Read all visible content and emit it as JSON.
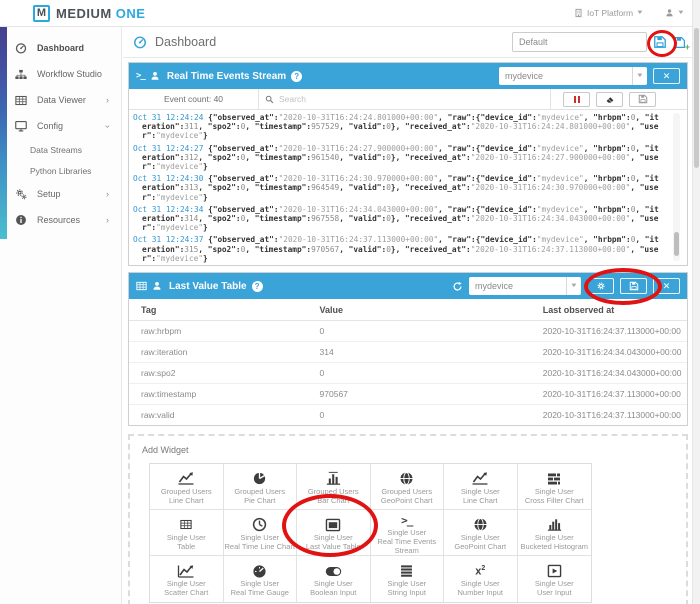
{
  "app": {
    "logo_mark": "M",
    "logo_medium": "MEDIUM",
    "logo_one": "ONE",
    "platform_label": "IoT Platform"
  },
  "sidebar": {
    "items": [
      {
        "label": "Dashboard",
        "icon": "gauge-icon",
        "active": true
      },
      {
        "label": "Workflow Studio",
        "icon": "sitemap-icon"
      },
      {
        "label": "Data Viewer",
        "icon": "table-icon",
        "chevron": "right"
      },
      {
        "label": "Config",
        "icon": "desktop-icon",
        "chevron": "down"
      },
      {
        "label": "Data Streams",
        "sub": true
      },
      {
        "label": "Python Libraries",
        "sub": true
      },
      {
        "label": "Setup",
        "icon": "gears-icon",
        "chevron": "right"
      },
      {
        "label": "Resources",
        "icon": "info-icon",
        "chevron": "right"
      }
    ]
  },
  "page_header": {
    "title": "Dashboard",
    "dashboard_name_value": "Default"
  },
  "events_widget": {
    "title": "Real Time Events Stream",
    "device_filter": "mydevice",
    "event_count_label": "Event count: 40",
    "search_placeholder": "Search",
    "events": [
      {
        "time": "Oct 31 12:24:24",
        "observed_at": "2020-10-31T16:24:24.801000+00:00",
        "device_id": "mydevice",
        "hrbpm": 0,
        "iteration": 311,
        "spo2": 0,
        "timestamp": 957529,
        "valid": 0,
        "received_at": "2020-10-31T16:24:24.801000+00:00",
        "user": "mydevice"
      },
      {
        "time": "Oct 31 12:24:27",
        "observed_at": "2020-10-31T16:24:27.900000+00:00",
        "device_id": "mydevice",
        "hrbpm": 0,
        "iteration": 312,
        "spo2": 0,
        "timestamp": 961540,
        "valid": 0,
        "received_at": "2020-10-31T16:24:27.900000+00:00",
        "user": "mydevice"
      },
      {
        "time": "Oct 31 12:24:30",
        "observed_at": "2020-10-31T16:24:30.970000+00:00",
        "device_id": "mydevice",
        "hrbpm": 0,
        "iteration": 313,
        "spo2": 0,
        "timestamp": 964549,
        "valid": 0,
        "received_at": "2020-10-31T16:24:30.970000+00:00",
        "user": "mydevice"
      },
      {
        "time": "Oct 31 12:24:34",
        "observed_at": "2020-10-31T16:24:34.043000+00:00",
        "device_id": "mydevice",
        "hrbpm": 0,
        "iteration": 314,
        "spo2": 0,
        "timestamp": 967558,
        "valid": 0,
        "received_at": "2020-10-31T16:24:34.043000+00:00",
        "user": "mydevice"
      },
      {
        "time": "Oct 31 12:24:37",
        "observed_at": "2020-10-31T16:24:37.113000+00:00",
        "device_id": "mydevice",
        "hrbpm": 0,
        "iteration": 315,
        "spo2": 0,
        "timestamp": 970567,
        "valid": 0,
        "received_at": "2020-10-31T16:24:37.113000+00:00",
        "user": "mydevice"
      }
    ]
  },
  "table_widget": {
    "title": "Last Value Table",
    "device_filter": "mydevice",
    "columns": [
      "Tag",
      "Value",
      "Last observed at"
    ],
    "rows": [
      {
        "tag": "raw:hrbpm",
        "value": "0",
        "last_observed": "2020-10-31T16:24:37.113000+00:00"
      },
      {
        "tag": "raw:iteration",
        "value": "314",
        "last_observed": "2020-10-31T16:24:34.043000+00:00"
      },
      {
        "tag": "raw:spo2",
        "value": "0",
        "last_observed": "2020-10-31T16:24:34.043000+00:00"
      },
      {
        "tag": "raw:timestamp",
        "value": "970567",
        "last_observed": "2020-10-31T16:24:37.113000+00:00"
      },
      {
        "tag": "raw:valid",
        "value": "0",
        "last_observed": "2020-10-31T16:24:37.113000+00:00"
      }
    ]
  },
  "add_widget": {
    "title": "Add Widget",
    "items": [
      {
        "line1": "Grouped Users",
        "line2": "Line Chart",
        "icon": "line-chart-icon"
      },
      {
        "line1": "Grouped Users",
        "line2": "Pie Chart",
        "icon": "pie-chart-icon"
      },
      {
        "line1": "Grouped Users",
        "line2": "Bar Chart",
        "icon": "bar-chart-icon"
      },
      {
        "line1": "Grouped Users",
        "line2": "GeoPoint Chart",
        "icon": "globe-icon"
      },
      {
        "line1": "Single User",
        "line2": "Line Chart",
        "icon": "line-chart-icon"
      },
      {
        "line1": "Single User",
        "line2": "Cross Filter Chart",
        "icon": "cross-filter-icon"
      },
      {
        "line1": "Single User",
        "line2": "Table",
        "icon": "table-icon"
      },
      {
        "line1": "Single User",
        "line2": "Real Time Line Chart",
        "icon": "clock-icon"
      },
      {
        "line1": "Single User",
        "line2": "Last Value Table",
        "icon": "last-value-icon",
        "circled": true
      },
      {
        "line1": "Single User",
        "line2": "Real Time Events Stream",
        "icon": "terminal-icon"
      },
      {
        "line1": "Single User",
        "line2": "GeoPoint Chart",
        "icon": "globe-icon"
      },
      {
        "line1": "Single User",
        "line2": "Bucketed Histogram",
        "icon": "histogram-icon"
      },
      {
        "line1": "Single User",
        "line2": "Scatter Chart",
        "icon": "scatter-icon"
      },
      {
        "line1": "Single User",
        "line2": "Real Time Gauge",
        "icon": "gauge-fill-icon"
      },
      {
        "line1": "Single User",
        "line2": "Boolean Input",
        "icon": "toggle-icon"
      },
      {
        "line1": "Single User",
        "line2": "String Input",
        "icon": "lines-icon"
      },
      {
        "line1": "Single User",
        "line2": "Number Input",
        "icon": "x2-icon"
      },
      {
        "line1": "Single User",
        "line2": "User Input",
        "icon": "play-box-icon"
      }
    ]
  },
  "colors": {
    "widget_header_blue": "#3aa4d8",
    "logo_blue": "#2aa8df",
    "timestamp_blue": "#2f96d3",
    "pause_red": "#c9302c",
    "add_green": "#56b04c",
    "annotation_red": "#e01212"
  }
}
